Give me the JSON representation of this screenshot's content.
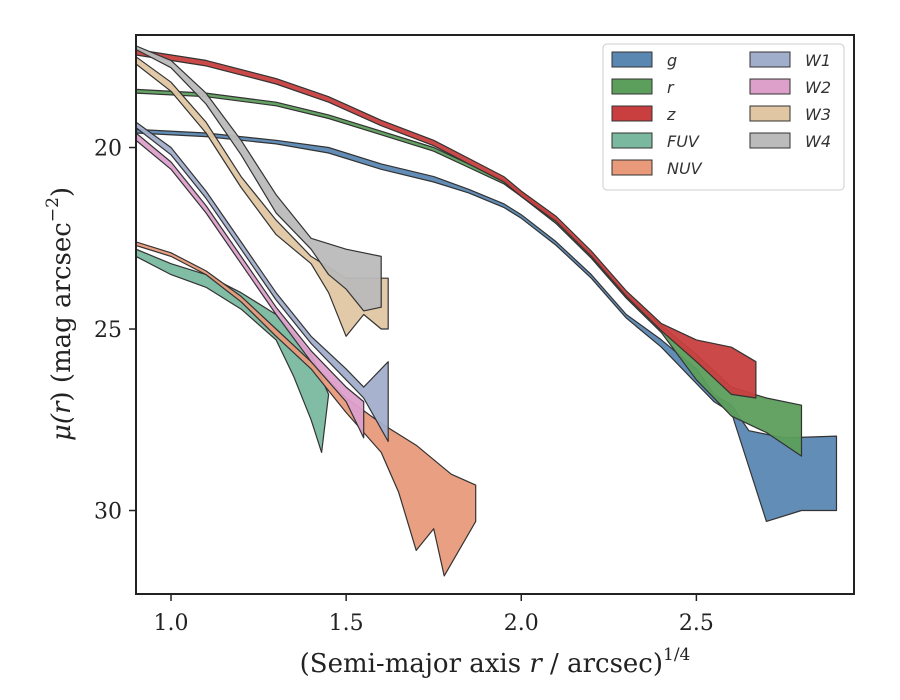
{
  "chart_data": {
    "type": "area",
    "xlabel": "(Semi-major axis r / arcsec)^1/4",
    "xlabel_parts": {
      "prefix": "(Semi-major axis ",
      "var": "r",
      "suffix": " / arcsec)",
      "sup": "1/4"
    },
    "ylabel": "μ(r) (mag arcsec^-2)",
    "ylabel_parts": {
      "mu": "μ(",
      "var": "r",
      "mid": ") (mag arcsec",
      "sup": "−2",
      "end": ")"
    },
    "xlim": [
      0.9,
      2.95
    ],
    "ylim": [
      32.3,
      16.9
    ],
    "y_inverted": true,
    "xticks": [
      "1.0",
      "1.5",
      "2.0",
      "2.5"
    ],
    "xtick_values": [
      1.0,
      1.5,
      2.0,
      2.5
    ],
    "yticks": [
      "20",
      "25",
      "30"
    ],
    "ytick_values": [
      20,
      25,
      30
    ],
    "grid": false,
    "legend_position": "top-right",
    "legend_columns": 2,
    "series": [
      {
        "name": "g",
        "color": "#5a87b2",
        "upper": [
          [
            0.9,
            19.5
          ],
          [
            1.1,
            19.6
          ],
          [
            1.3,
            19.8
          ],
          [
            1.45,
            20.0
          ],
          [
            1.6,
            20.45
          ],
          [
            1.75,
            20.8
          ],
          [
            1.85,
            21.15
          ],
          [
            1.95,
            21.55
          ],
          [
            2.0,
            21.85
          ],
          [
            2.1,
            22.6
          ],
          [
            2.2,
            23.5
          ],
          [
            2.3,
            24.6
          ],
          [
            2.4,
            25.3
          ],
          [
            2.5,
            26.1
          ],
          [
            2.55,
            26.8
          ],
          [
            2.6,
            27.1
          ],
          [
            2.65,
            27.8
          ],
          [
            2.75,
            28.0
          ],
          [
            2.9,
            27.95
          ]
        ],
        "lower": [
          [
            0.9,
            19.6
          ],
          [
            1.1,
            19.7
          ],
          [
            1.3,
            19.9
          ],
          [
            1.45,
            20.15
          ],
          [
            1.6,
            20.6
          ],
          [
            1.75,
            20.95
          ],
          [
            1.85,
            21.25
          ],
          [
            1.95,
            21.65
          ],
          [
            2.0,
            21.95
          ],
          [
            2.1,
            22.7
          ],
          [
            2.2,
            23.6
          ],
          [
            2.3,
            24.7
          ],
          [
            2.4,
            25.5
          ],
          [
            2.5,
            26.5
          ],
          [
            2.55,
            27.0
          ],
          [
            2.6,
            27.3
          ],
          [
            2.65,
            28.8
          ],
          [
            2.7,
            30.3
          ],
          [
            2.8,
            30.0
          ],
          [
            2.9,
            30.0
          ]
        ]
      },
      {
        "name": "r",
        "color": "#5c9e5c",
        "upper": [
          [
            0.9,
            18.4
          ],
          [
            1.1,
            18.5
          ],
          [
            1.3,
            18.75
          ],
          [
            1.45,
            19.1
          ],
          [
            1.6,
            19.55
          ],
          [
            1.75,
            20.0
          ],
          [
            1.85,
            20.45
          ],
          [
            1.95,
            20.9
          ],
          [
            2.0,
            21.25
          ],
          [
            2.1,
            22.0
          ],
          [
            2.2,
            22.95
          ],
          [
            2.3,
            24.05
          ],
          [
            2.4,
            24.9
          ],
          [
            2.5,
            25.7
          ],
          [
            2.6,
            26.6
          ],
          [
            2.7,
            26.9
          ],
          [
            2.8,
            27.1
          ]
        ],
        "lower": [
          [
            0.9,
            18.5
          ],
          [
            1.1,
            18.6
          ],
          [
            1.3,
            18.85
          ],
          [
            1.45,
            19.2
          ],
          [
            1.6,
            19.65
          ],
          [
            1.75,
            20.1
          ],
          [
            1.85,
            20.55
          ],
          [
            1.95,
            21.0
          ],
          [
            2.0,
            21.35
          ],
          [
            2.1,
            22.1
          ],
          [
            2.2,
            23.05
          ],
          [
            2.3,
            24.15
          ],
          [
            2.4,
            25.1
          ],
          [
            2.5,
            26.4
          ],
          [
            2.6,
            27.4
          ],
          [
            2.7,
            27.85
          ],
          [
            2.8,
            28.5
          ]
        ]
      },
      {
        "name": "z",
        "color": "#c93f3f",
        "upper": [
          [
            0.9,
            17.3
          ],
          [
            1.1,
            17.6
          ],
          [
            1.3,
            18.1
          ],
          [
            1.45,
            18.6
          ],
          [
            1.6,
            19.25
          ],
          [
            1.75,
            19.8
          ],
          [
            1.85,
            20.3
          ],
          [
            1.95,
            20.8
          ],
          [
            2.0,
            21.2
          ],
          [
            2.1,
            21.9
          ],
          [
            2.2,
            22.85
          ],
          [
            2.3,
            23.95
          ],
          [
            2.4,
            24.85
          ],
          [
            2.5,
            25.3
          ],
          [
            2.6,
            25.5
          ],
          [
            2.67,
            25.9
          ]
        ],
        "lower": [
          [
            0.9,
            17.45
          ],
          [
            1.1,
            17.75
          ],
          [
            1.3,
            18.25
          ],
          [
            1.45,
            18.75
          ],
          [
            1.6,
            19.4
          ],
          [
            1.75,
            19.95
          ],
          [
            1.85,
            20.45
          ],
          [
            1.95,
            20.95
          ],
          [
            2.0,
            21.35
          ],
          [
            2.1,
            22.05
          ],
          [
            2.2,
            23.0
          ],
          [
            2.3,
            24.1
          ],
          [
            2.4,
            25.05
          ],
          [
            2.5,
            25.9
          ],
          [
            2.6,
            26.8
          ],
          [
            2.67,
            26.9
          ]
        ]
      },
      {
        "name": "FUV",
        "color": "#7ab8a0",
        "upper": [
          [
            0.9,
            22.8
          ],
          [
            1.0,
            23.2
          ],
          [
            1.1,
            23.5
          ],
          [
            1.2,
            24.0
          ],
          [
            1.3,
            24.6
          ],
          [
            1.4,
            25.7
          ],
          [
            1.45,
            26.8
          ]
        ],
        "lower": [
          [
            0.9,
            23.0
          ],
          [
            1.0,
            23.5
          ],
          [
            1.1,
            23.85
          ],
          [
            1.2,
            24.45
          ],
          [
            1.3,
            25.3
          ],
          [
            1.35,
            26.3
          ],
          [
            1.4,
            27.5
          ],
          [
            1.43,
            28.4
          ]
        ]
      },
      {
        "name": "NUV",
        "color": "#e89a7a",
        "upper": [
          [
            0.9,
            22.6
          ],
          [
            1.0,
            22.9
          ],
          [
            1.1,
            23.4
          ],
          [
            1.2,
            24.1
          ],
          [
            1.3,
            25.0
          ],
          [
            1.4,
            25.9
          ],
          [
            1.5,
            26.9
          ],
          [
            1.6,
            27.6
          ],
          [
            1.7,
            28.2
          ],
          [
            1.8,
            29.0
          ],
          [
            1.87,
            29.3
          ]
        ],
        "lower": [
          [
            0.9,
            22.7
          ],
          [
            1.0,
            23.0
          ],
          [
            1.1,
            23.5
          ],
          [
            1.2,
            24.25
          ],
          [
            1.3,
            25.2
          ],
          [
            1.4,
            26.1
          ],
          [
            1.5,
            27.3
          ],
          [
            1.6,
            28.4
          ],
          [
            1.65,
            29.5
          ],
          [
            1.7,
            31.1
          ],
          [
            1.75,
            30.5
          ],
          [
            1.78,
            31.8
          ],
          [
            1.87,
            30.3
          ]
        ]
      },
      {
        "name": "W1",
        "color": "#a1aecb",
        "upper": [
          [
            0.9,
            19.3
          ],
          [
            1.0,
            20.0
          ],
          [
            1.1,
            21.2
          ],
          [
            1.2,
            22.6
          ],
          [
            1.3,
            24.0
          ],
          [
            1.4,
            25.2
          ],
          [
            1.5,
            26.1
          ],
          [
            1.55,
            26.6
          ],
          [
            1.62,
            25.9
          ]
        ],
        "lower": [
          [
            0.9,
            19.45
          ],
          [
            1.0,
            20.2
          ],
          [
            1.1,
            21.4
          ],
          [
            1.2,
            22.8
          ],
          [
            1.3,
            24.2
          ],
          [
            1.4,
            25.4
          ],
          [
            1.5,
            26.4
          ],
          [
            1.55,
            26.9
          ],
          [
            1.62,
            28.1
          ]
        ]
      },
      {
        "name": "W2",
        "color": "#dda0cb",
        "upper": [
          [
            0.9,
            19.6
          ],
          [
            1.0,
            20.4
          ],
          [
            1.1,
            21.6
          ],
          [
            1.2,
            23.0
          ],
          [
            1.3,
            24.4
          ],
          [
            1.4,
            25.6
          ],
          [
            1.5,
            26.6
          ],
          [
            1.55,
            27.0
          ]
        ],
        "lower": [
          [
            0.9,
            19.8
          ],
          [
            1.0,
            20.6
          ],
          [
            1.1,
            21.8
          ],
          [
            1.2,
            23.2
          ],
          [
            1.3,
            24.6
          ],
          [
            1.4,
            25.9
          ],
          [
            1.5,
            27.0
          ],
          [
            1.55,
            28.0
          ]
        ]
      },
      {
        "name": "W3",
        "color": "#e0c6a2",
        "upper": [
          [
            0.9,
            17.5
          ],
          [
            1.0,
            18.2
          ],
          [
            1.1,
            19.3
          ],
          [
            1.2,
            20.8
          ],
          [
            1.3,
            22.0
          ],
          [
            1.4,
            23.0
          ],
          [
            1.5,
            23.6
          ],
          [
            1.6,
            23.6
          ],
          [
            1.62,
            23.6
          ]
        ],
        "lower": [
          [
            0.9,
            17.7
          ],
          [
            1.0,
            18.45
          ],
          [
            1.1,
            19.6
          ],
          [
            1.2,
            21.1
          ],
          [
            1.3,
            22.4
          ],
          [
            1.4,
            23.2
          ],
          [
            1.45,
            24.0
          ],
          [
            1.5,
            25.2
          ],
          [
            1.55,
            24.6
          ],
          [
            1.6,
            25.0
          ],
          [
            1.62,
            25.0
          ]
        ]
      },
      {
        "name": "W4",
        "color": "#bbbbbb",
        "upper": [
          [
            0.9,
            17.2
          ],
          [
            1.0,
            17.6
          ],
          [
            1.1,
            18.5
          ],
          [
            1.2,
            19.8
          ],
          [
            1.3,
            21.3
          ],
          [
            1.4,
            22.5
          ],
          [
            1.5,
            22.8
          ],
          [
            1.6,
            23.0
          ]
        ],
        "lower": [
          [
            0.9,
            17.3
          ],
          [
            1.0,
            17.8
          ],
          [
            1.1,
            18.8
          ],
          [
            1.2,
            20.2
          ],
          [
            1.3,
            21.8
          ],
          [
            1.4,
            22.8
          ],
          [
            1.45,
            23.5
          ],
          [
            1.5,
            23.9
          ],
          [
            1.55,
            24.5
          ],
          [
            1.6,
            24.4
          ]
        ]
      }
    ]
  }
}
